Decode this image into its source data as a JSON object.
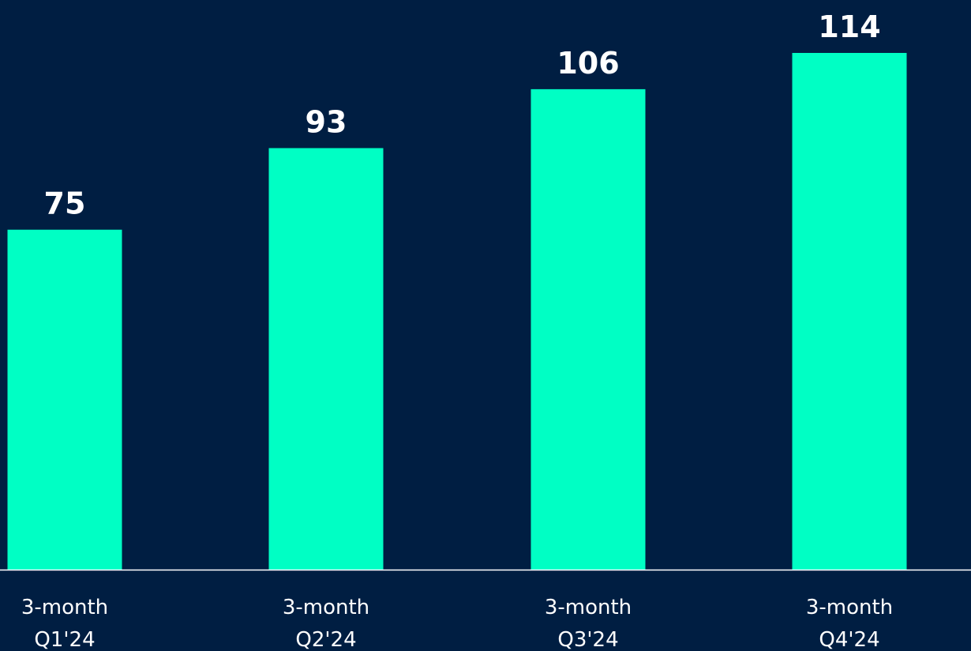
{
  "chart_data": {
    "type": "bar",
    "categories": [
      [
        "3-month",
        "Q1'24"
      ],
      [
        "3-month",
        "Q2'24"
      ],
      [
        "3-month",
        "Q3'24"
      ],
      [
        "3-month",
        "Q4'24"
      ]
    ],
    "values": [
      75,
      93,
      106,
      114
    ],
    "data_labels": [
      "75",
      "93",
      "106",
      "114"
    ],
    "ylim": [
      0,
      114
    ],
    "grid": false,
    "legend": "none"
  },
  "colors": {
    "background": "#001e42",
    "bar": "#00ffc4",
    "axis": "#ffffff",
    "text": "#ffffff"
  }
}
